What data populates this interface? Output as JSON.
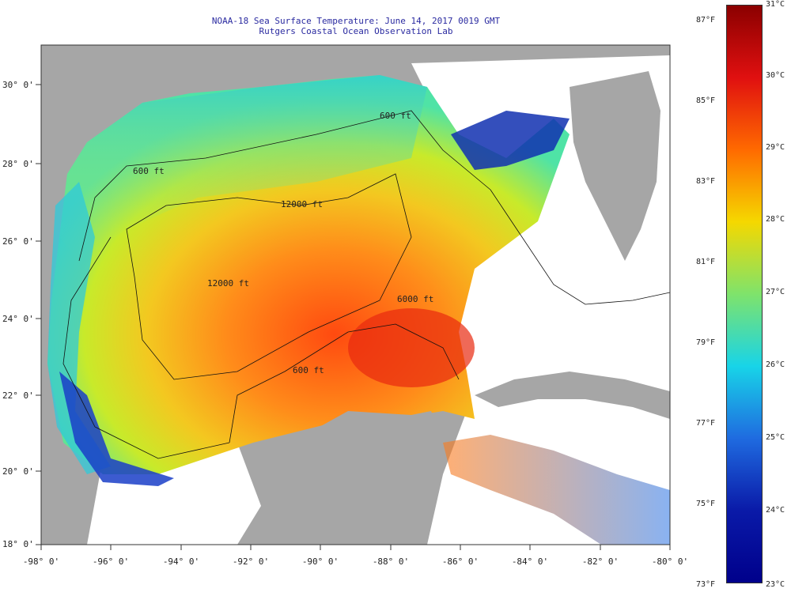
{
  "header": {
    "title_line1": "NOAA-18 Sea Surface Temperature:  June 14, 2017 0019 GMT",
    "title_line2": "Rutgers Coastal Ocean Observation Lab"
  },
  "map": {
    "lon_ticks": [
      "-98° 0'",
      "-96° 0'",
      "-94° 0'",
      "-92° 0'",
      "-90° 0'",
      "-88° 0'",
      "-86° 0'",
      "-84° 0'",
      "-82° 0'",
      "-80° 0'"
    ],
    "lat_ticks": [
      "30° 0'",
      "28° 0'",
      "26° 0'",
      "24° 0'",
      "22° 0'",
      "20° 0'",
      "18° 0'"
    ],
    "contour_labels": [
      "600 ft",
      "600 ft",
      "12000 ft",
      "12000 ft",
      "6000 ft",
      "600 ft"
    ],
    "land_color": "#a6a6a6",
    "cloud_color": "#ffffff"
  },
  "colorbar": {
    "fahrenheit_labels": [
      "87°F",
      "85°F",
      "83°F",
      "81°F",
      "79°F",
      "77°F",
      "75°F",
      "73°F"
    ],
    "celsius_labels": [
      "31°C",
      "30°C",
      "29°C",
      "28°C",
      "27°C",
      "26°C",
      "25°C",
      "24°C",
      "23°C"
    ],
    "colors": [
      "#8b0000",
      "#e01010",
      "#ff6a00",
      "#f5d800",
      "#7fe36b",
      "#18d4e8",
      "#1f6be0",
      "#0a1aa8",
      "#00008b"
    ]
  }
}
